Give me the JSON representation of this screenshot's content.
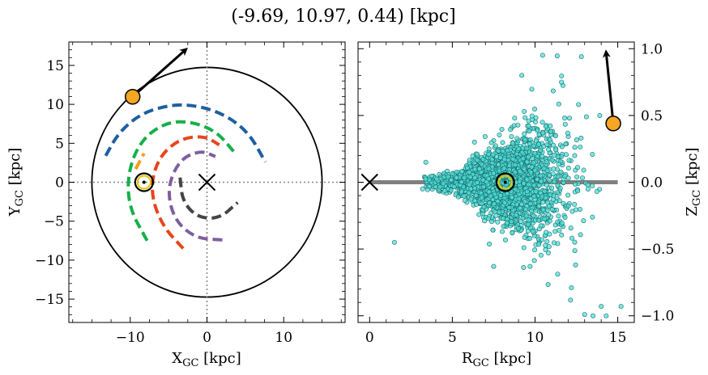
{
  "title": "(-9.69, 10.97, 0.44) [kpc]",
  "chart_data": [
    {
      "type": "scatter",
      "panel": "left",
      "xlabel_main": "X",
      "xlabel_sub": "GC",
      "xlabel_unit": " [kpc]",
      "ylabel_main": "Y",
      "ylabel_sub": "GC",
      "ylabel_unit": " [kpc]",
      "xlim": [
        -18,
        18
      ],
      "ylim": [
        -18,
        18
      ],
      "xticks": [
        -10,
        0,
        10
      ],
      "yticks": [
        -15,
        -10,
        -5,
        0,
        5,
        10,
        15
      ],
      "xtick_labels": [
        "−10",
        "0",
        "10"
      ],
      "ytick_labels": [
        "−15",
        "−10",
        "−5",
        "0",
        "5",
        "10",
        "15"
      ],
      "boundary_circle_radius": 15,
      "galactic_center": [
        0,
        0
      ],
      "sun_position": [
        -8.2,
        0
      ],
      "object_position": [
        -9.69,
        10.97
      ],
      "velocity_arrow_end": [
        -2.8,
        17.0
      ],
      "spiral_arms": [
        {
          "color": "#1f5fa0",
          "points": [
            [
              -13.2,
              3.4
            ],
            [
              -11.5,
              6.4
            ],
            [
              -8.5,
              8.9
            ],
            [
              -4.5,
              10.0
            ],
            [
              -1,
              9.8
            ],
            [
              2.5,
              8.6
            ],
            [
              5.5,
              6.3
            ],
            [
              7.6,
              2.6
            ]
          ]
        },
        {
          "color": "#16b04a",
          "points": [
            [
              -7.8,
              -7.5
            ],
            [
              -10.2,
              -3.2
            ],
            [
              -10.3,
              1.4
            ],
            [
              -8.6,
              5.4
            ],
            [
              -5.4,
              7.7
            ],
            [
              -2,
              7.8
            ],
            [
              1.3,
              6.5
            ],
            [
              3.6,
              3.8
            ]
          ]
        },
        {
          "color": "#f0a020",
          "points": [
            [
              -9.3,
              1.7
            ],
            [
              -8.2,
              3.7
            ]
          ]
        },
        {
          "color": "#e8451c",
          "points": [
            [
              -3.1,
              -8.5
            ],
            [
              -5.9,
              -5.5
            ],
            [
              -7.4,
              -1.2
            ],
            [
              -6.5,
              2.9
            ],
            [
              -3.8,
              5.5
            ],
            [
              -0.4,
              6.0
            ],
            [
              1.6,
              4.8
            ]
          ]
        },
        {
          "color": "#7e5ea0",
          "points": [
            [
              2.0,
              -7.4
            ],
            [
              -1.5,
              -7.2
            ],
            [
              -4.3,
              -4.8
            ],
            [
              -5.2,
              -0.8
            ],
            [
              -3.6,
              2.9
            ],
            [
              -0.8,
              4.1
            ],
            [
              1.1,
              3.3
            ]
          ]
        },
        {
          "color": "#444444",
          "points": [
            [
              -3.5,
              0.6
            ],
            [
              -3.2,
              -2.4
            ],
            [
              -1.3,
              -4.5
            ],
            [
              1.6,
              -4.7
            ],
            [
              4.0,
              -2.6
            ]
          ]
        }
      ]
    },
    {
      "type": "scatter",
      "panel": "right",
      "xlabel_main": "R",
      "xlabel_sub": "GC",
      "xlabel_unit": " [kpc]",
      "ylabel_main": "Z",
      "ylabel_sub": "GC",
      "ylabel_unit": " [kpc]",
      "xlim": [
        -0.7,
        16
      ],
      "ylim": [
        -1.05,
        1.05
      ],
      "xticks": [
        0,
        5,
        10,
        15
      ],
      "yticks": [
        -1.0,
        -0.5,
        0.0,
        0.5,
        1.0
      ],
      "xtick_labels": [
        "0",
        "5",
        "10",
        "15"
      ],
      "ytick_labels": [
        "−1.0",
        "−0.5",
        "0.0",
        "0.5",
        "1.0"
      ],
      "galactic_center": [
        0,
        0
      ],
      "sun_position": [
        8.2,
        0
      ],
      "object_position": [
        14.73,
        0.44
      ],
      "velocity_arrow_end": [
        14.3,
        0.97
      ],
      "disk_line": [
        0,
        15
      ],
      "point_color": "#4fe0d8",
      "point_edge": "#1d6b6b",
      "point_count": 2200,
      "note": "stellar distribution concentrated near R=8 kpc, Z=0, flaring outward to R~15 kpc with |Z| up to ~1 kpc",
      "outlier_points": [
        [
          1.5,
          -0.45
        ],
        [
          3.2,
          -0.05
        ],
        [
          3.4,
          0.15
        ],
        [
          12.8,
          0.94
        ],
        [
          11.6,
          0.75
        ],
        [
          9.2,
          0.8
        ],
        [
          13.5,
          -1.0
        ],
        [
          14.0,
          -0.93
        ],
        [
          15.2,
          -0.93
        ],
        [
          7.5,
          -0.63
        ],
        [
          9.7,
          -0.63
        ],
        [
          12.2,
          -0.79
        ],
        [
          13.0,
          -0.99
        ],
        [
          14.3,
          -1.0
        ]
      ]
    }
  ]
}
